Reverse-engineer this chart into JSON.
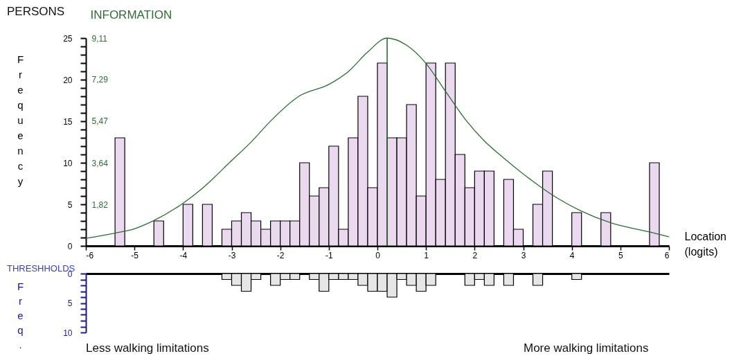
{
  "chart_data": [
    {
      "type": "histogram",
      "title": "PERSONS",
      "xlabel": "Location (logits)",
      "ylabel": "Frequency",
      "y2label": "INFORMATION",
      "bins": [
        -5.4,
        -5.2,
        -5.0,
        -4.8,
        -4.6,
        -4.4,
        -4.2,
        -4.0,
        -3.8,
        -3.6,
        -3.4,
        -3.2,
        -3.0,
        -2.8,
        -2.6,
        -2.4,
        -2.2,
        -2.0,
        -1.8,
        -1.6,
        -1.4,
        -1.2,
        -1.0,
        -0.8,
        -0.6,
        -0.4,
        -0.2,
        0.0,
        0.2,
        0.4,
        0.6,
        0.8,
        1.0,
        1.2,
        1.4,
        1.6,
        1.8,
        2.0,
        2.2,
        2.4,
        2.6,
        2.8,
        3.0,
        3.2,
        3.4,
        3.6,
        3.8,
        4.0,
        4.2,
        4.4,
        4.6,
        4.8,
        5.0,
        5.2,
        5.4,
        5.6,
        5.8
      ],
      "series": [
        {
          "type": "histogram",
          "color": "#ead9ef",
          "values": [
            13,
            0,
            0,
            0,
            3,
            0,
            0,
            5,
            0,
            5,
            0,
            2,
            3,
            4,
            3,
            2,
            3,
            3,
            3,
            10,
            6,
            7,
            12,
            2,
            13,
            18,
            7,
            22,
            13,
            13,
            17,
            6,
            22,
            8,
            22,
            11,
            7,
            9,
            9,
            0,
            8,
            2,
            0,
            5,
            9,
            0,
            0,
            4,
            0,
            0,
            4,
            0,
            0,
            0,
            0,
            10
          ]
        },
        {
          "type": "line",
          "color": "#2e6b35",
          "axis": "y2",
          "x": [
            -6,
            -5.4,
            -5,
            -4.6,
            -4,
            -3.6,
            -3,
            -2.6,
            -2.2,
            -1.6,
            -1,
            -0.6,
            -0.2,
            0.2,
            0.6,
            1,
            1.4,
            1.8,
            2.2,
            2.6,
            3.2,
            3.6,
            4.2,
            4.8,
            5.6,
            6
          ],
          "values": [
            0.33,
            0.56,
            0.75,
            1.11,
            1.87,
            2.53,
            3.74,
            4.55,
            5.47,
            6.58,
            7.08,
            7.64,
            8.5,
            9.11,
            8.8,
            8.0,
            6.78,
            5.57,
            4.6,
            3.85,
            2.83,
            2.23,
            1.52,
            1.01,
            0.61,
            0.4
          ]
        }
      ],
      "xlim": [
        -6,
        6
      ],
      "xticks": [
        -6,
        -5,
        -4,
        -3,
        -2,
        -1,
        0,
        1,
        2,
        3,
        4,
        5,
        6
      ],
      "ylim": [
        0,
        25
      ],
      "yticks": [
        0,
        {
          "value": 1,
          "label": null
        },
        {
          "value": 2,
          "label": null
        },
        {
          "value": 3,
          "label": null
        },
        {
          "value": 4,
          "label": null
        },
        5,
        {
          "value": 6,
          "label": null
        },
        {
          "value": 7,
          "label": null
        },
        {
          "value": 8,
          "label": null
        },
        {
          "value": 9,
          "label": null
        },
        10,
        {
          "value": 11,
          "label": null
        },
        {
          "value": 12,
          "label": null
        },
        {
          "value": 13,
          "label": null
        },
        {
          "value": 14,
          "label": null
        },
        15,
        {
          "value": 16,
          "label": null
        },
        {
          "value": 17,
          "label": null
        },
        {
          "value": 18,
          "label": null
        },
        {
          "value": 19,
          "label": null
        },
        20,
        {
          "value": 21,
          "label": null
        },
        {
          "value": 22,
          "label": null
        },
        {
          "value": 23,
          "label": null
        },
        {
          "value": 24,
          "label": null
        },
        25
      ],
      "y2lim": [
        0,
        9.11
      ],
      "y2ticks": [
        {
          "value": 1.82,
          "label": "1,82"
        },
        {
          "value": 3.64,
          "label": "3,64"
        },
        {
          "value": 5.47,
          "label": "5,47"
        },
        {
          "value": 7.29,
          "label": "7,29"
        },
        {
          "value": 9.11,
          "label": "9,11"
        }
      ],
      "ref_lines": [
        {
          "axis": "x",
          "value": 0.2,
          "color": "#2e6b35"
        }
      ]
    },
    {
      "type": "histogram",
      "title": "THRESHHOLDS",
      "ylabel": "Freq.",
      "color": "#e6e6e6",
      "bins": [
        -3.2,
        -3.0,
        -2.8,
        -2.6,
        -2.4,
        -2.2,
        -2.0,
        -1.8,
        -1.6,
        -1.4,
        -1.2,
        -1.0,
        -0.8,
        -0.6,
        -0.4,
        -0.2,
        0.0,
        0.2,
        0.4,
        0.6,
        0.8,
        1.0,
        1.2,
        1.4,
        1.6,
        1.8,
        2.0,
        2.2,
        2.4,
        2.6,
        2.8,
        3.0,
        3.2,
        3.4,
        3.6,
        3.8,
        4.0,
        4.2
      ],
      "values": [
        1,
        2,
        3,
        1,
        0,
        2,
        1,
        1,
        0,
        1,
        3,
        1,
        1,
        1,
        2,
        3,
        3,
        4,
        1,
        2,
        3,
        2,
        0,
        0,
        0,
        2,
        1,
        2,
        0,
        2,
        0,
        0,
        2,
        0,
        0,
        0,
        1
      ],
      "xlim": [
        -6,
        6
      ],
      "xticks": [
        -6,
        -5,
        -4,
        -3,
        -2,
        -1,
        0,
        1,
        2,
        3,
        4,
        5,
        6
      ],
      "ylim": [
        10,
        0
      ],
      "yticks": [
        0,
        {
          "value": 1,
          "label": null
        },
        {
          "value": 2,
          "label": null
        },
        {
          "value": 3,
          "label": null
        },
        {
          "value": 4,
          "label": null
        },
        5,
        {
          "value": 6,
          "label": null
        },
        {
          "value": 7,
          "label": null
        },
        {
          "value": 8,
          "label": null
        },
        {
          "value": 9,
          "label": null
        },
        10
      ],
      "tick_labels": "y",
      "annotations": [
        "Less walking limitations",
        "More walking limitations"
      ]
    }
  ]
}
